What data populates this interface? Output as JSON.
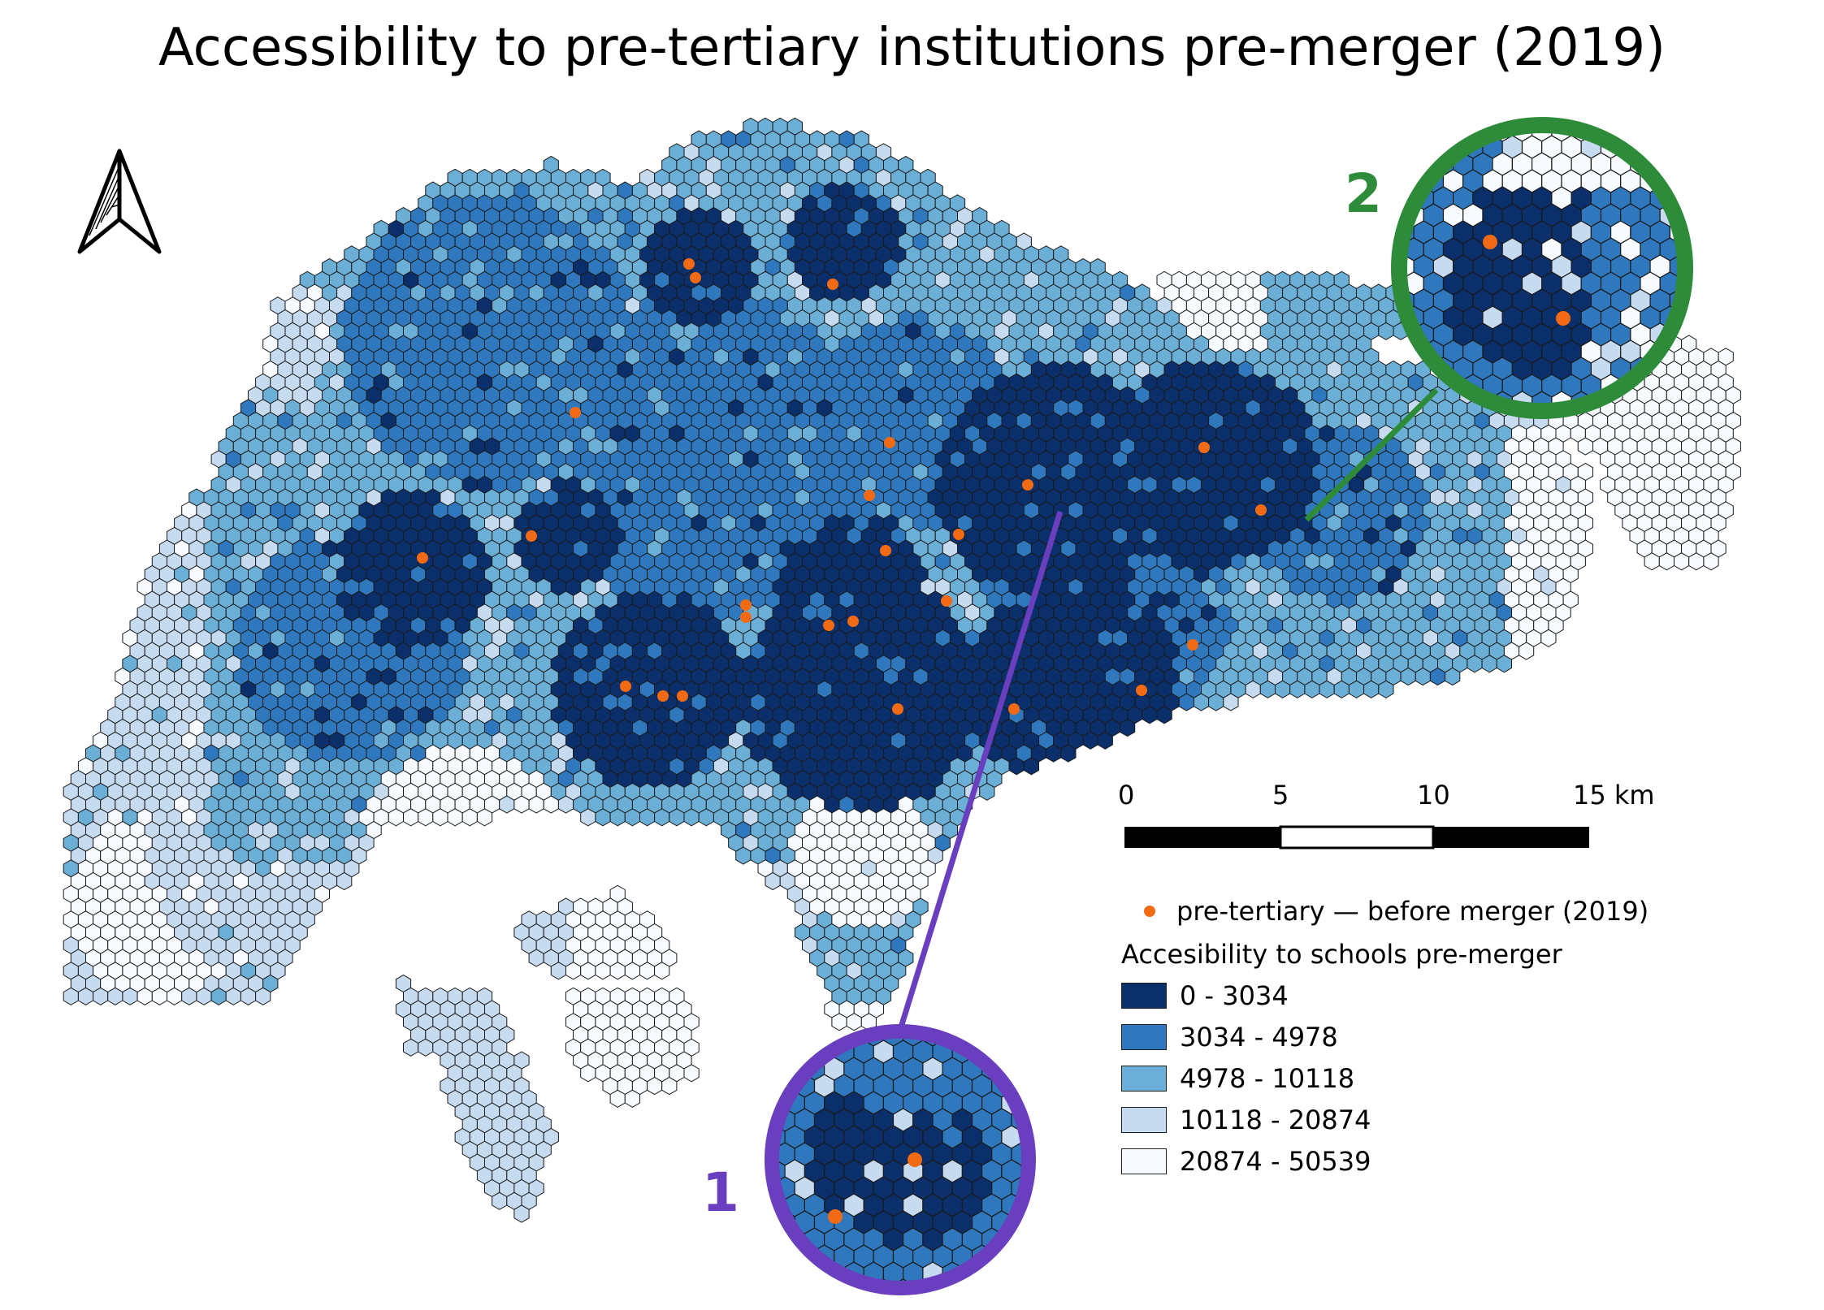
{
  "title": "Accessibility to pre-tertiary institutions pre-merger (2019)",
  "north_arrow": {
    "icon": "north-arrow-icon"
  },
  "scale_bar": {
    "labels": [
      "0",
      "5",
      "10",
      "15 km"
    ]
  },
  "legend": {
    "point_label": "pre-tertiary — before merger (2019)",
    "point_color": "#f26b14",
    "title": "Accesibility to schools pre-merger",
    "classes": [
      {
        "label": "0 - 3034",
        "color": "#0b2f6b"
      },
      {
        "label": "3034 - 4978",
        "color": "#2f78bd"
      },
      {
        "label": "4978 - 10118",
        "color": "#6baed6"
      },
      {
        "label": "10118 - 20874",
        "color": "#c6dbef"
      },
      {
        "label": "20874 - 50539",
        "color": "#f7fbff"
      }
    ]
  },
  "insets": [
    {
      "number": "1",
      "color": "#6a3fbf"
    },
    {
      "number": "2",
      "color": "#2e8b3a"
    }
  ]
}
